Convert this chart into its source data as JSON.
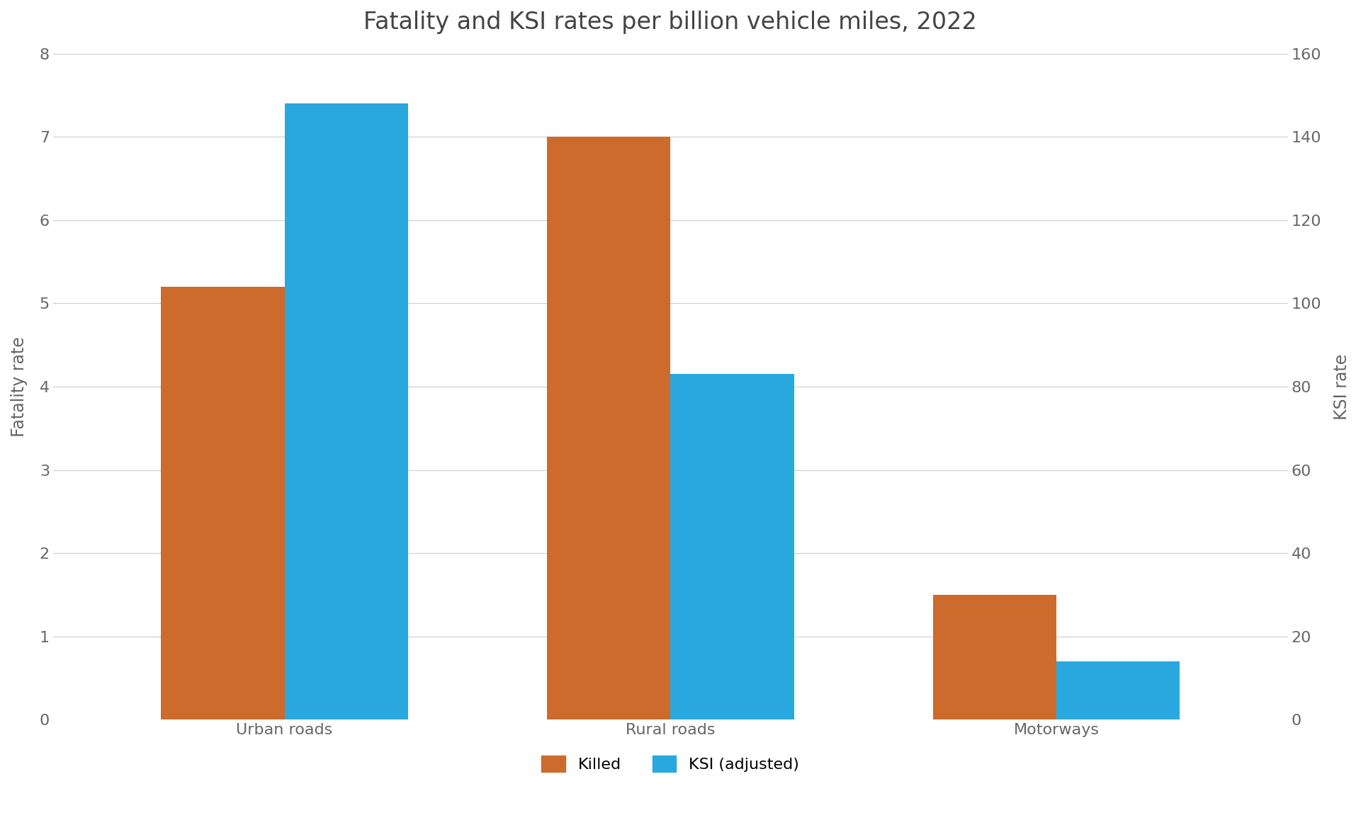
{
  "title": "Fatality and KSI rates per billion vehicle miles, 2022",
  "categories": [
    "Urban roads",
    "Rural roads",
    "Motorways"
  ],
  "killed_values": [
    5.2,
    7.0,
    1.5
  ],
  "ksi_values": [
    148.0,
    83.0,
    14.0
  ],
  "killed_color": "#CC6B2C",
  "ksi_color": "#29A8E0",
  "ylabel_left": "Fatality rate",
  "ylabel_right": "KSI rate",
  "ylim_left": [
    0,
    8
  ],
  "ylim_right": [
    0,
    160
  ],
  "yticks_left": [
    0,
    1,
    2,
    3,
    4,
    5,
    6,
    7,
    8
  ],
  "yticks_right": [
    0,
    20,
    40,
    60,
    80,
    100,
    120,
    140,
    160
  ],
  "legend_labels": [
    "Killed",
    "KSI (adjusted)"
  ],
  "background_color": "#ffffff",
  "title_fontsize": 24,
  "label_fontsize": 17,
  "tick_fontsize": 16,
  "legend_fontsize": 16,
  "bar_width": 0.32,
  "title_color": "#444444",
  "axis_color": "#666666",
  "grid_color": "#cccccc"
}
